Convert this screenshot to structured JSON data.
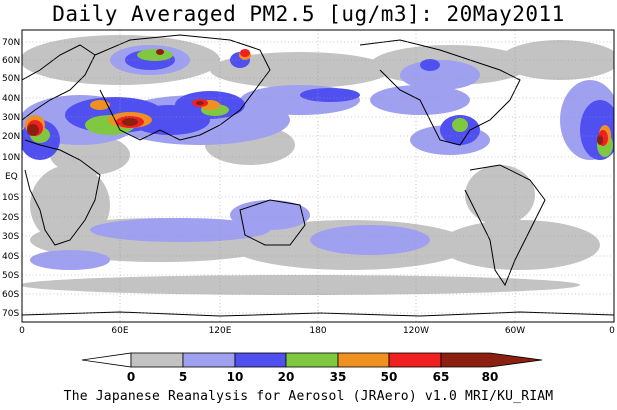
{
  "title": "Daily Averaged PM2.5 [ug/m3]: 20May2011",
  "footer": "The Japanese Reanalysis for Aerosol (JRAero) v1.0 MRI/KU_RIAM",
  "map": {
    "lat_labels": [
      "70N",
      "60N",
      "50N",
      "40N",
      "30N",
      "20N",
      "10N",
      "EQ",
      "10S",
      "20S",
      "30S",
      "40S",
      "50S",
      "60S",
      "70S"
    ],
    "lon_labels": [
      "0",
      "60E",
      "120E",
      "180",
      "120W",
      "60W",
      "0"
    ]
  },
  "colorbar": {
    "levels": [
      "0",
      "5",
      "10",
      "20",
      "35",
      "50",
      "65",
      "80"
    ],
    "colors": [
      "#ffffff",
      "#c3c3c3",
      "#a0a0f0",
      "#5050f0",
      "#80c840",
      "#f09020",
      "#f02020",
      "#8c2010"
    ]
  },
  "field_colors": {
    "gray": "#c3c3c3",
    "light_blue": "#a0a0f0",
    "blue": "#5050f0",
    "green": "#80c840",
    "orange": "#f09020",
    "red": "#f02020",
    "brown": "#8c2010"
  }
}
